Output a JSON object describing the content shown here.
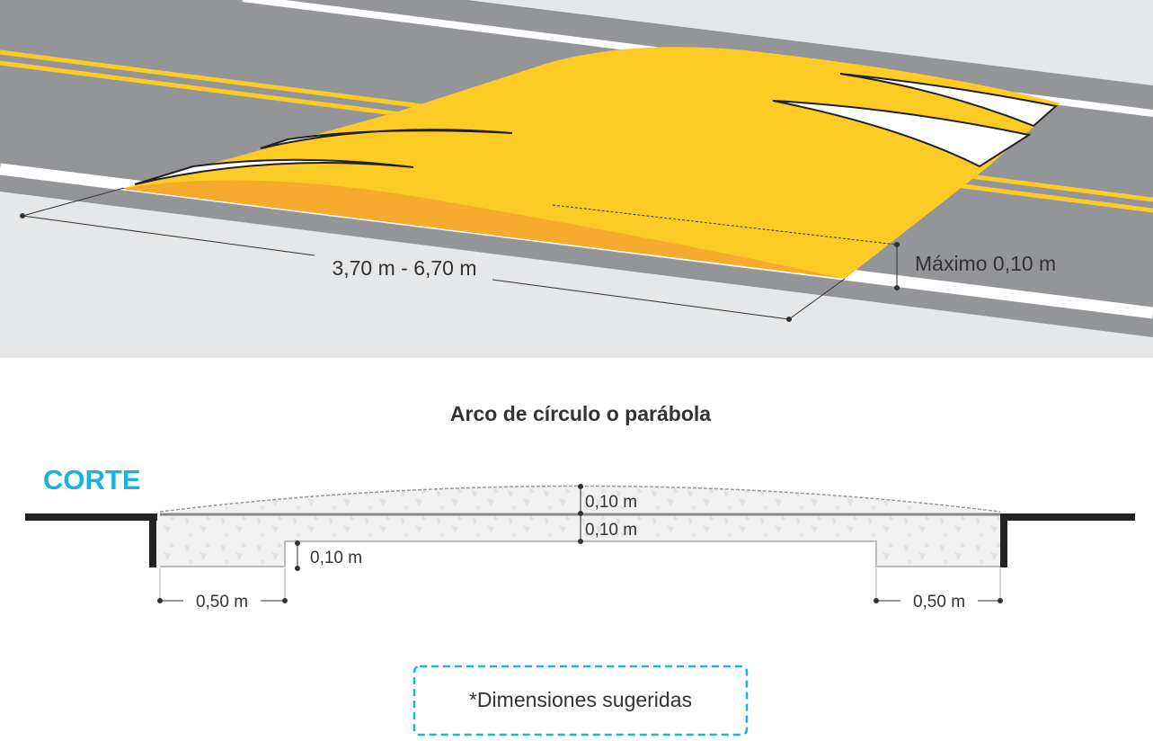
{
  "perspective": {
    "length_label": "3,70 m - 6,70 m",
    "height_label": "Máximo 0,10 m"
  },
  "section": {
    "title": "Arco de círculo o parábola",
    "heading": "CORTE",
    "arc_height_label": "0,10 m",
    "base_thickness_label": "0,10 m",
    "step_height_label": "0,10 m",
    "left_offset_label": "0,50 m",
    "right_offset_label": "0,50 m"
  },
  "note": {
    "text": "*Dimensiones sugeridas"
  },
  "colors": {
    "accent": "#1ab3e0",
    "bump_yellow": "#fdcb25",
    "bump_shade": "#f6aa2e",
    "road": "#939598",
    "ground": "#e6e7e9"
  }
}
